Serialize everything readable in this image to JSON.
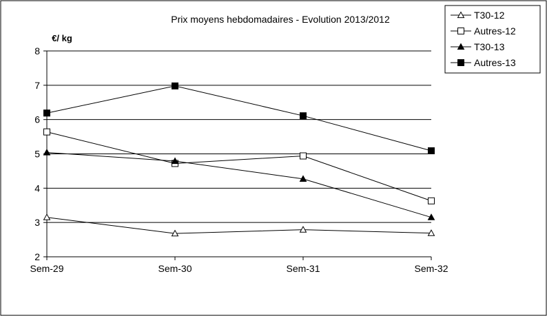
{
  "chart_data": {
    "type": "line",
    "title": "Prix moyens hebdomadaires - Evolution  2013/2012",
    "ylabel": "€/ kg",
    "xlabel": "",
    "categories": [
      "Sem-29",
      "Sem-30",
      "Sem-31",
      "Sem-32"
    ],
    "ylim": [
      2,
      8
    ],
    "yticks": [
      2,
      3,
      4,
      5,
      6,
      7,
      8
    ],
    "grid": "horizontal",
    "legend_position": "top-right",
    "series": [
      {
        "name": "T30-12",
        "marker": "triangle-open",
        "values": [
          3.15,
          2.68,
          2.79,
          2.69
        ]
      },
      {
        "name": "Autres-12",
        "marker": "square-open",
        "values": [
          5.64,
          4.72,
          4.94,
          3.63
        ]
      },
      {
        "name": "T30-13",
        "marker": "triangle-filled",
        "values": [
          5.04,
          4.79,
          4.27,
          3.15
        ]
      },
      {
        "name": "Autres-13",
        "marker": "square-filled",
        "values": [
          6.19,
          6.98,
          6.11,
          5.09
        ]
      }
    ]
  }
}
